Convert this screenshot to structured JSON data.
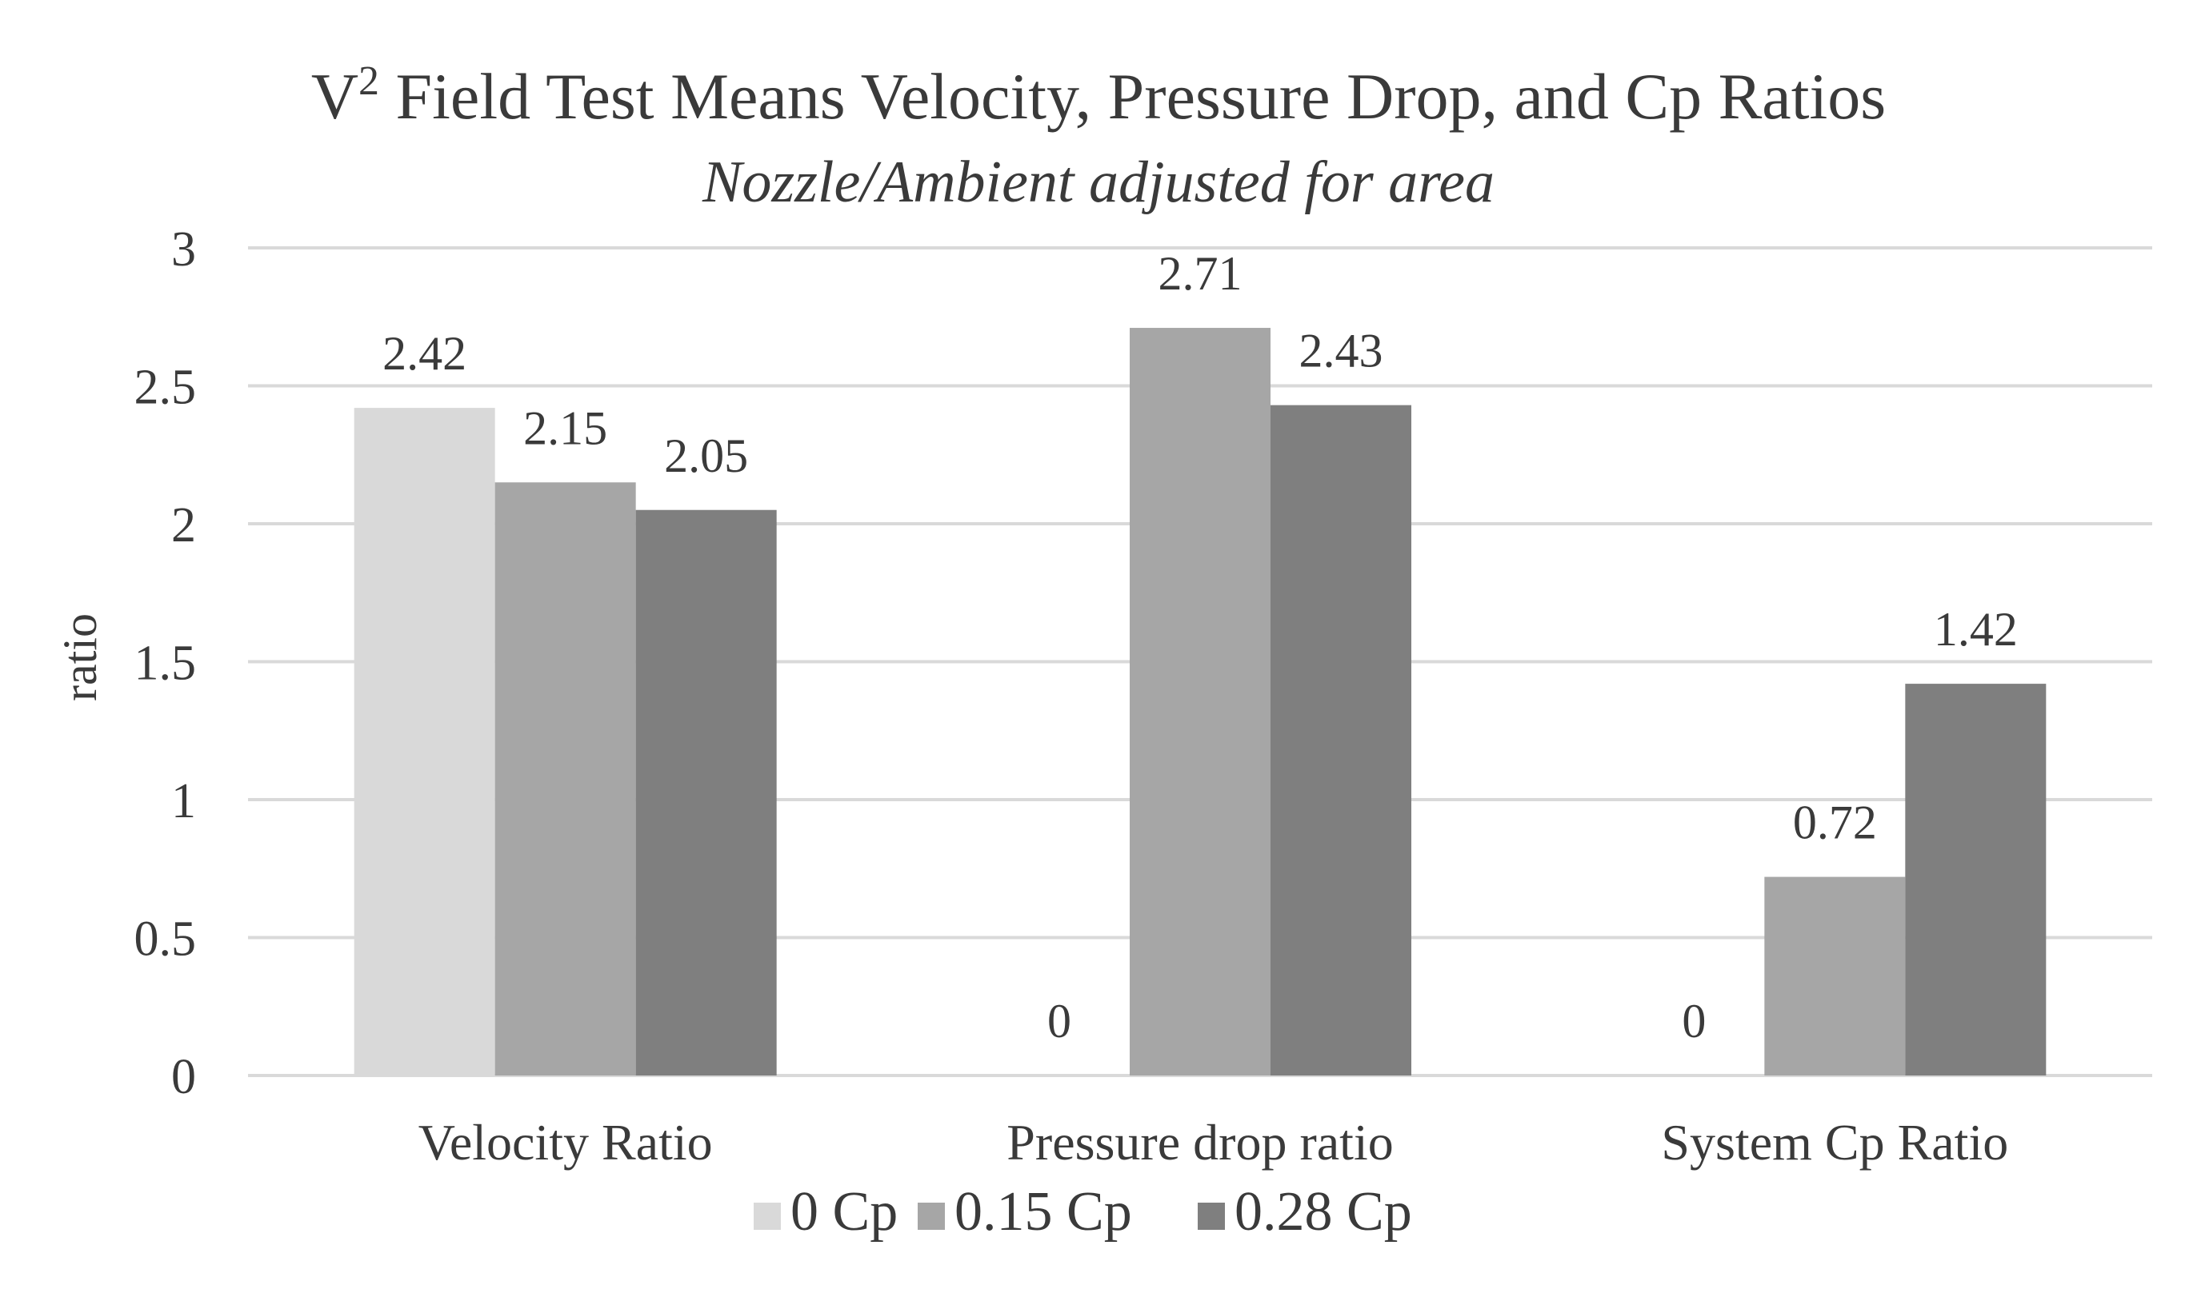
{
  "chart_data": {
    "type": "bar",
    "title_main": "V",
    "title_sup": "2",
    "title_rest": " Field Test Means Velocity, Pressure Drop, and Cp Ratios",
    "subtitle": "Nozzle/Ambient adjusted for area",
    "ylabel": "ratio",
    "xlabel": "",
    "ylim": [
      0,
      3
    ],
    "yticks": [
      "0",
      "0.5",
      "1",
      "1.5",
      "2",
      "2.5",
      "3"
    ],
    "ytick_values": [
      0,
      0.5,
      1,
      1.5,
      2,
      2.5,
      3
    ],
    "grid": true,
    "legend_position": "bottom",
    "categories": [
      "Velocity Ratio",
      "Pressure drop ratio",
      "System Cp Ratio"
    ],
    "series": [
      {
        "name": "0 Cp",
        "color": "#d9d9d9",
        "values": [
          2.42,
          0,
          0
        ],
        "labels": [
          "2.42",
          "0",
          "0"
        ]
      },
      {
        "name": "0.15 Cp",
        "color": "#a6a6a6",
        "values": [
          2.15,
          2.71,
          0.72
        ],
        "labels": [
          "2.15",
          "2.71",
          "0.72"
        ]
      },
      {
        "name": "0.28 Cp",
        "color": "#7f7f7f",
        "values": [
          2.05,
          2.43,
          1.42
        ],
        "labels": [
          "2.05",
          "2.43",
          "1.42"
        ]
      }
    ]
  }
}
